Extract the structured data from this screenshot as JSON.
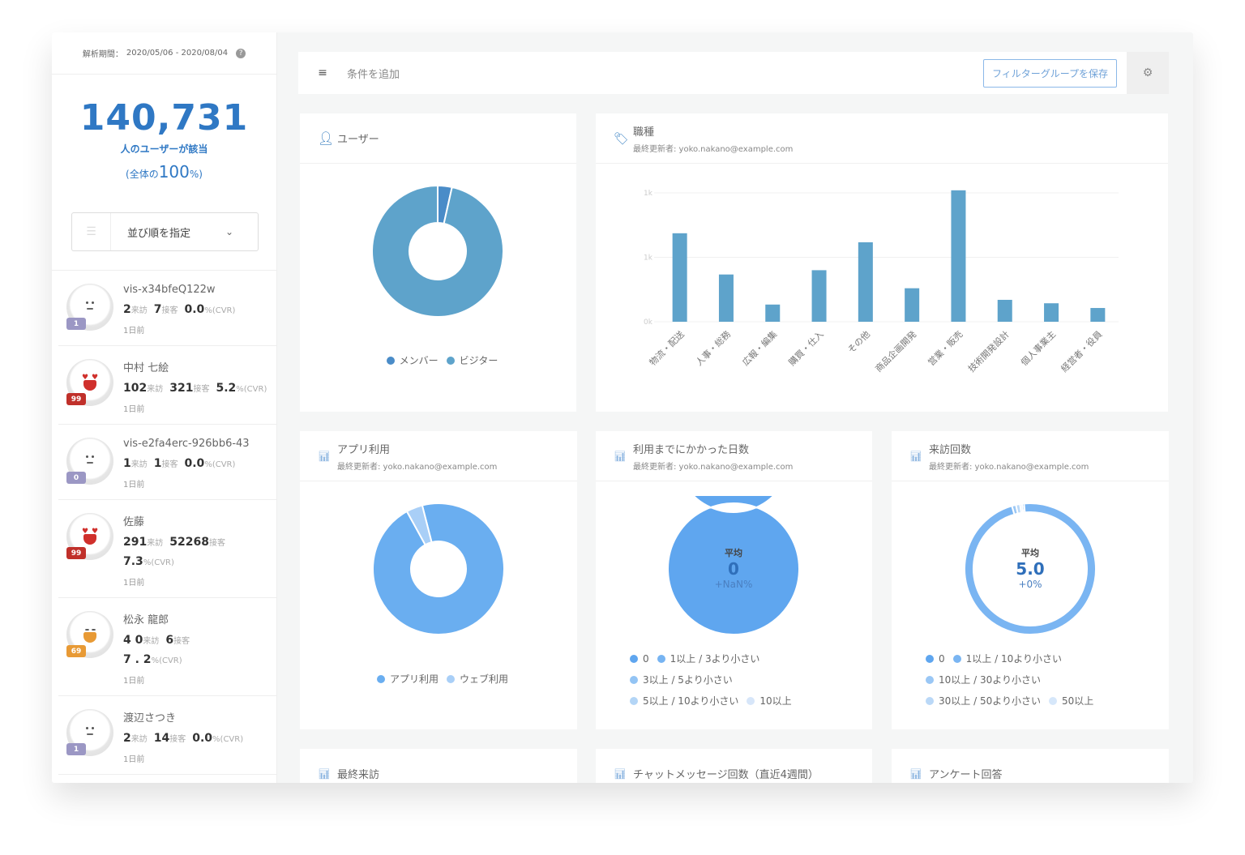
{
  "sidebar": {
    "period_label": "解析期間：",
    "period": "2020/05/06 - 2020/08/04",
    "help_icon": "question-circle-icon",
    "count": "140,731",
    "count_label": "人のユーザーが該当",
    "pct_prefix": "(全体の",
    "pct_value": "100",
    "pct_suffix": "%)",
    "sort_label": "並び順を指定",
    "visitors": [
      {
        "name": "vis-x34bfeQ122w",
        "visits": "2",
        "visits_unit": "来訪",
        "chats": "7",
        "chats_unit": "接客",
        "cvr": "0.0",
        "cvr_unit": "%(CVR)",
        "ago": "1日前",
        "score": "1",
        "mood": "neutral",
        "badge_color": "#9b97c4"
      },
      {
        "name": "中村 七絵",
        "visits": "102",
        "visits_unit": "来訪",
        "chats": "321",
        "chats_unit": "接客",
        "cvr": "5.2",
        "cvr_unit": "%(CVR)",
        "ago": "1日前",
        "score": "99",
        "mood": "love",
        "badge_color": "#c0302a"
      },
      {
        "name": "vis-e2fa4erc-926bb6-43",
        "visits": "1",
        "visits_unit": "来訪",
        "chats": "1",
        "chats_unit": "接客",
        "cvr": "0.0",
        "cvr_unit": "%(CVR)",
        "ago": "1日前",
        "score": "0",
        "mood": "neutral",
        "badge_color": "#9b97c4"
      },
      {
        "name": "佐藤",
        "visits": "291",
        "visits_unit": "来訪",
        "chats": "52268",
        "chats_unit": "接客",
        "cvr": "7.3",
        "cvr_unit": "%(CVR)",
        "ago": "1日前",
        "score": "99",
        "mood": "love",
        "badge_color": "#c0302a"
      },
      {
        "name": "松永 龍郎",
        "visits": "4 0",
        "visits_unit": "来訪",
        "chats": "6",
        "chats_unit": "接客",
        "cvr": "7 . 2",
        "cvr_unit": "%(CVR)",
        "ago": "1日前",
        "score": "69",
        "mood": "happy",
        "badge_color": "#e89a35"
      },
      {
        "name": "渡辺さつき",
        "visits": "2",
        "visits_unit": "来訪",
        "chats": "14",
        "chats_unit": "接客",
        "cvr": "0.0",
        "cvr_unit": "%(CVR)",
        "ago": "1日前",
        "score": "1",
        "mood": "neutral",
        "badge_color": "#9b97c4"
      }
    ]
  },
  "filter": {
    "add_label": "条件を追加",
    "save_label": "フィルターグループを保存"
  },
  "updated_by": "最終更新者: yoko.nakano@example.com",
  "colors": {
    "accent": "#2f78c4",
    "bar": "#5ea3cb"
  },
  "chart_data": [
    {
      "id": "user",
      "type": "pie",
      "title": "ユーザー",
      "categories": [
        "メンバー",
        "ビジター"
      ],
      "values": [
        3.5,
        96.5
      ],
      "colors": [
        "#4a8cc8",
        "#5ea3cb"
      ]
    },
    {
      "id": "job",
      "type": "bar",
      "title": "職種",
      "subtitle": "最終更新者: yoko.nakano@example.com",
      "categories": [
        "物流・配送",
        "人事・総務",
        "広報・編集",
        "購買・仕入",
        "その他",
        "商品企画開発",
        "営業・販売",
        "技術開発設計",
        "個人事業主",
        "経営者・役員"
      ],
      "values": [
        1030,
        550,
        200,
        600,
        925,
        390,
        1530,
        255,
        215,
        160
      ],
      "yticks": [
        0,
        750,
        1500
      ],
      "ytick_labels": [
        "0k",
        "1k",
        "1k"
      ],
      "ylim": [
        0,
        1500
      ],
      "grid": true
    },
    {
      "id": "app",
      "type": "pie",
      "title": "アプリ利用",
      "subtitle": "最終更新者: yoko.nakano@example.com",
      "categories": [
        "アプリ利用",
        "ウェブ利用"
      ],
      "values": [
        96,
        4
      ],
      "colors": [
        "#6aaef0",
        "#a9cff7"
      ]
    },
    {
      "id": "days",
      "type": "pie",
      "title": "利用までにかかった日数",
      "subtitle": "最終更新者: yoko.nakano@example.com",
      "categories": [
        "0",
        "1以上 / 3より小さい",
        "3以上 / 5より小さい",
        "5以上 / 10より小さい",
        "10以上"
      ],
      "values": [
        100,
        0,
        0,
        0,
        0
      ],
      "colors": [
        "#5fa6ef",
        "#77b4f2",
        "#93c4f4",
        "#b3d5f6",
        "#d7e6f9"
      ],
      "avg_label": "平均",
      "avg": "0",
      "change": "+NaN%"
    },
    {
      "id": "visits",
      "type": "pie",
      "title": "来訪回数",
      "subtitle": "最終更新者: yoko.nakano@example.com",
      "categories": [
        "0",
        "1以上 / 10より小さい",
        "10以上 / 30より小さい",
        "30以上 / 50より小さい",
        "50以上"
      ],
      "values": [
        0.5,
        97,
        1,
        1,
        0.5
      ],
      "colors": [
        "#5fa6ef",
        "#7ab5f2",
        "#9ac7f5",
        "#bad8f7",
        "#d6e7fa"
      ],
      "avg_label": "平均",
      "avg": "5.0",
      "change": "+0%"
    }
  ],
  "bottom_cards": [
    {
      "title": "最終来訪"
    },
    {
      "title": "チャットメッセージ回数（直近4週間）"
    },
    {
      "title": "アンケート回答"
    }
  ]
}
